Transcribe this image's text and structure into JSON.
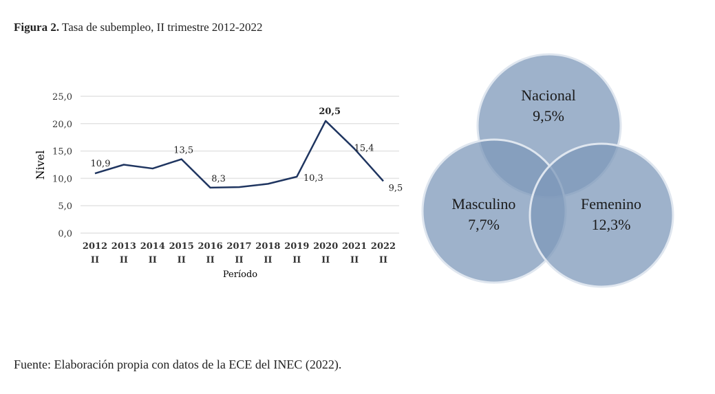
{
  "title": {
    "bold": "Figura 2.",
    "text": " Tasa de subempleo, II trimestre 2012-2022"
  },
  "source": "Fuente: Elaboración propia con datos de la ECE del INEC (2022).",
  "chart_data": {
    "type": "line",
    "xlabel": "Período",
    "ylabel": "Nivel",
    "ylim": [
      0,
      25
    ],
    "yticks": [
      "0,0",
      "5,0",
      "10,0",
      "15,0",
      "20,0",
      "25,0"
    ],
    "categories": [
      "2012",
      "2013",
      "2014",
      "2015",
      "2016",
      "2017",
      "2018",
      "2019",
      "2020",
      "2021",
      "2022"
    ],
    "category_sub": "II",
    "values": [
      10.9,
      12.5,
      11.8,
      13.5,
      8.3,
      8.4,
      9.0,
      10.3,
      20.5,
      15.4,
      9.5
    ],
    "data_labels": {
      "0": "10,9",
      "3": "13,5",
      "4": "8,3",
      "7": "10,3",
      "8": "20,5",
      "9": "15,4",
      "10": "9,5"
    },
    "grid": true,
    "color": "#1f3560"
  },
  "venn": {
    "color": "#7d98ba",
    "sets": [
      {
        "name": "Nacional",
        "value": "9,5%"
      },
      {
        "name": "Masculino",
        "value": "7,7%"
      },
      {
        "name": "Femenino",
        "value": "12,3%"
      }
    ]
  }
}
